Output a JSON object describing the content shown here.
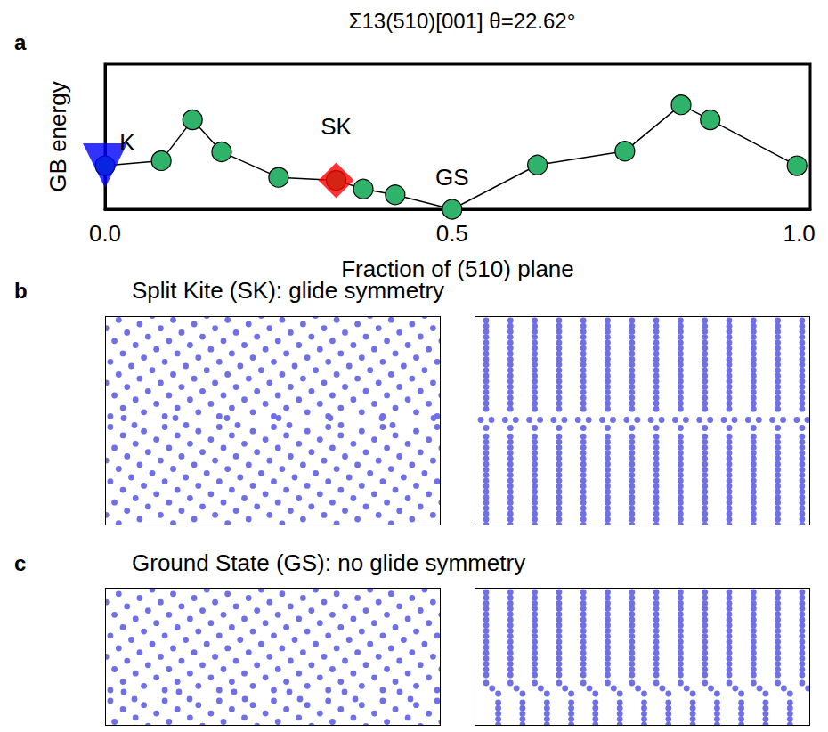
{
  "chart_data": {
    "type": "line",
    "panel_label": "a",
    "title": "Σ13(510)[001] θ=22.62°",
    "x_label": "Fraction of (510) plane",
    "y_label": "GB energy",
    "xlim": [
      0,
      1.016
    ],
    "xticks": [
      {
        "value": 0,
        "label": "0.0"
      },
      0.5,
      {
        "value": 1,
        "label": "1.0"
      }
    ],
    "ylim": [
      0,
      1
    ],
    "yticks": [],
    "tick_labels": "x",
    "grid": false,
    "series": [
      {
        "type": "line",
        "marker": "circle",
        "color": "#2fb36a",
        "x": [
          0,
          0.081,
          0.126,
          0.168,
          0.25,
          0.333,
          0.372,
          0.418,
          0.5,
          0.623,
          0.749,
          0.83,
          0.872,
          0.997
        ],
        "values": [
          0.3,
          0.335,
          0.616,
          0.396,
          0.22,
          0.2,
          0.14,
          0.1,
          0,
          0.305,
          0.4,
          0.72,
          0.616,
          0.3
        ]
      },
      {
        "type": "scatter",
        "marker": "triangle_down",
        "color": "#0000ff",
        "x": [
          0
        ],
        "values": [
          0.3
        ]
      },
      {
        "type": "scatter",
        "marker": "diamond",
        "color": "#ff0000",
        "x": [
          0.333
        ],
        "values": [
          0.2
        ]
      }
    ],
    "annotations": [
      {
        "text": "K",
        "x": 0.032,
        "y": 0.46
      },
      {
        "text": "SK",
        "x": 0.333,
        "y": 0.57
      },
      {
        "text": "GS",
        "x": 0.5,
        "y": 0.22
      }
    ]
  },
  "panels": [
    {
      "label": "b",
      "title": "Split Kite (SK): glide symmetry"
    },
    {
      "label": "c",
      "title": "Ground State (GS): no glide symmetry"
    }
  ]
}
